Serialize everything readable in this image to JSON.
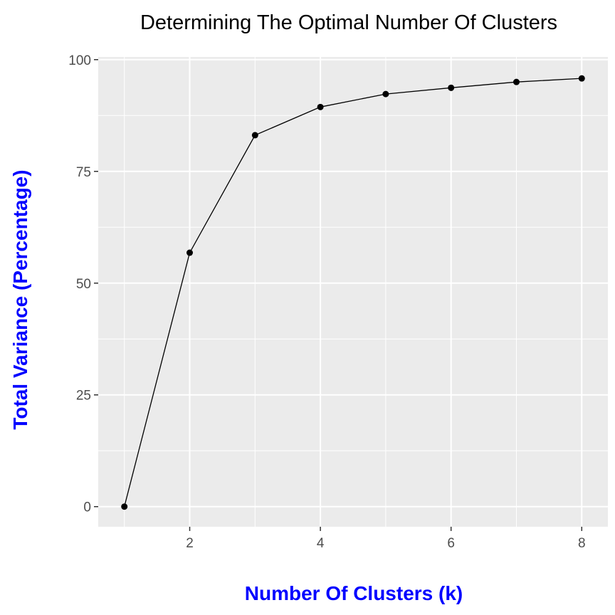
{
  "chart_data": {
    "type": "line",
    "title": "Determining The Optimal Number Of Clusters",
    "xlabel": "Number Of Clusters (k)",
    "ylabel": "Total Variance (Percentage)",
    "x": [
      1,
      2,
      3,
      4,
      5,
      6,
      7,
      8
    ],
    "series": [
      {
        "name": "Total Variance",
        "values": [
          0,
          56.8,
          83.1,
          89.4,
          92.3,
          93.7,
          95.0,
          95.8
        ]
      }
    ],
    "xticks": [
      2,
      4,
      6,
      8
    ],
    "yticks": [
      0,
      25,
      50,
      75,
      100
    ],
    "xlim": [
      0.6,
      8.4
    ],
    "ylim": [
      -4.5,
      100.6
    ],
    "grid": true,
    "legend": "none"
  },
  "colors": {
    "panel_background": "#EBEBEB",
    "grid": "#FFFFFF",
    "axis_title": "#0000FF",
    "tick_label": "#4D4D4D",
    "line": "#000000",
    "point": "#000000"
  }
}
